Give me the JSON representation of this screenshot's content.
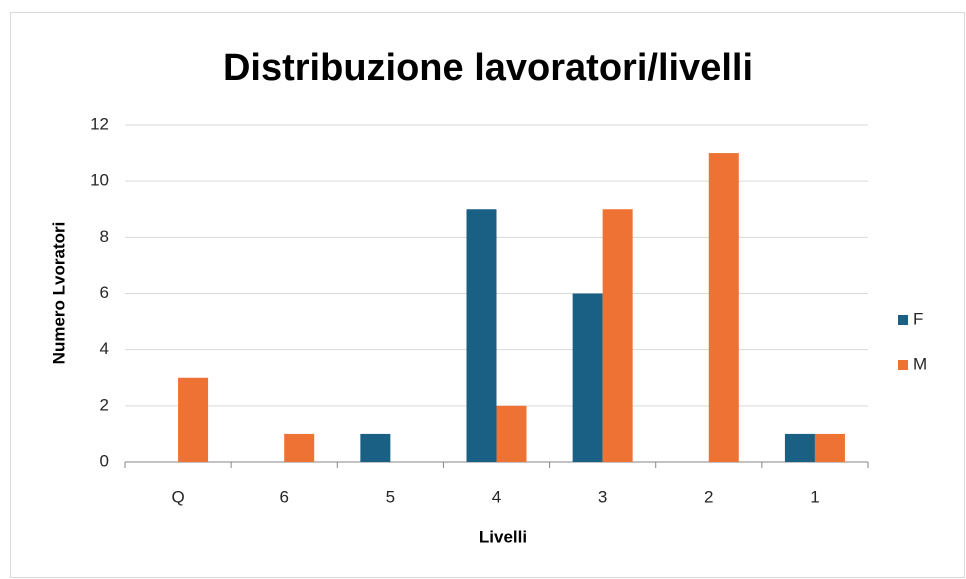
{
  "chart_data": {
    "type": "bar",
    "title": "Distribuzione lavoratori/livelli",
    "x_label": "Livelli",
    "y_label": "Numero Lvoratori",
    "categories": [
      "Q",
      "6",
      "5",
      "4",
      "3",
      "2",
      "1"
    ],
    "series": [
      {
        "name": "F",
        "color": "#1a5f84",
        "values": [
          0,
          0,
          1,
          9,
          6,
          0,
          1
        ]
      },
      {
        "name": "M",
        "color": "#ed7233",
        "values": [
          3,
          1,
          0,
          2,
          9,
          11,
          1
        ]
      }
    ],
    "ylim": [
      0,
      12
    ],
    "yticks": [
      0,
      2,
      4,
      6,
      8,
      10,
      12
    ],
    "grid": true,
    "legend": "right"
  }
}
